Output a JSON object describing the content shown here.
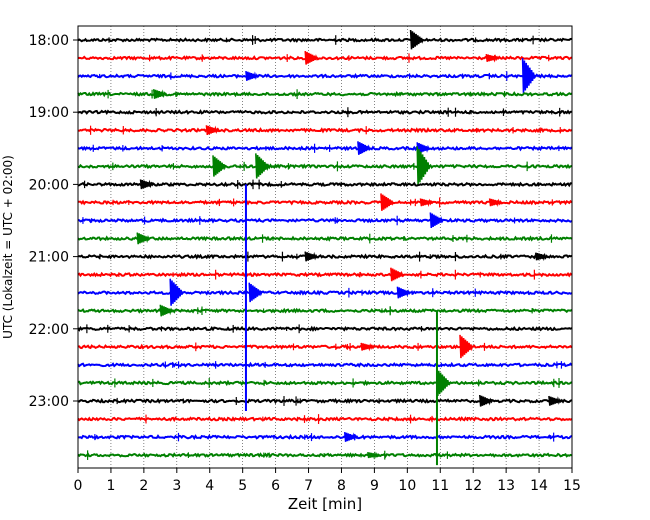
{
  "chart_data": {
    "type": "line",
    "title": "",
    "xlabel": "Zeit  [min]",
    "ylabel": "UTC (Lokalzeit = UTC + 02:00)",
    "xlim": [
      0,
      15
    ],
    "x_ticks": [
      0,
      1,
      2,
      3,
      4,
      5,
      6,
      7,
      8,
      9,
      10,
      11,
      12,
      13,
      14,
      15
    ],
    "x_tick_labels": [
      "0",
      "1",
      "2",
      "3",
      "4",
      "5",
      "6",
      "7",
      "8",
      "9",
      "10",
      "11",
      "12",
      "13",
      "14",
      "15"
    ],
    "y_tick_labels": [
      "18:00",
      "19:00",
      "20:00",
      "21:00",
      "22:00",
      "23:00"
    ],
    "vertical_grid": "dotted",
    "color_cycle": [
      "#000000",
      "#ff0000",
      "#0000ff",
      "#008000"
    ],
    "traces": [
      {
        "start": "18:00",
        "events": [
          {
            "t": 10.1,
            "amp": 10
          }
        ]
      },
      {
        "start": "18:15",
        "events": [
          {
            "t": 6.9,
            "amp": 7
          },
          {
            "t": 12.4,
            "amp": 4
          }
        ]
      },
      {
        "start": "18:30",
        "events": [
          {
            "t": 13.5,
            "amp": 18
          },
          {
            "t": 5.1,
            "amp": 5
          }
        ]
      },
      {
        "start": "18:45",
        "events": [
          {
            "t": 2.3,
            "amp": 5
          }
        ]
      },
      {
        "start": "19:00",
        "events": []
      },
      {
        "start": "19:15",
        "events": [
          {
            "t": 3.9,
            "amp": 5
          }
        ]
      },
      {
        "start": "19:30",
        "events": [
          {
            "t": 8.5,
            "amp": 7
          },
          {
            "t": 10.3,
            "amp": 6
          }
        ]
      },
      {
        "start": "19:45",
        "events": [
          {
            "t": 4.1,
            "amp": 11
          },
          {
            "t": 5.4,
            "amp": 13
          },
          {
            "t": 10.3,
            "amp": 20
          }
        ]
      },
      {
        "start": "20:00",
        "events": [
          {
            "t": 1.9,
            "amp": 5
          }
        ]
      },
      {
        "start": "20:15",
        "events": [
          {
            "t": 9.2,
            "amp": 9
          },
          {
            "t": 10.4,
            "amp": 4
          },
          {
            "t": 12.5,
            "amp": 4
          }
        ]
      },
      {
        "start": "20:30",
        "events": [
          {
            "t": 10.7,
            "amp": 8
          }
        ]
      },
      {
        "start": "20:45",
        "events": [
          {
            "t": 1.8,
            "amp": 6
          }
        ]
      },
      {
        "start": "21:00",
        "events": [
          {
            "t": 6.9,
            "amp": 5
          },
          {
            "t": 13.9,
            "amp": 4
          }
        ]
      },
      {
        "start": "21:15",
        "events": [
          {
            "t": 9.5,
            "amp": 7
          }
        ]
      },
      {
        "start": "21:30",
        "events": [
          {
            "t": 2.8,
            "amp": 14
          },
          {
            "t": 5.2,
            "amp": 10
          },
          {
            "t": 9.7,
            "amp": 6
          }
        ]
      },
      {
        "start": "21:45",
        "events": [
          {
            "t": 2.5,
            "amp": 6
          }
        ]
      },
      {
        "start": "22:00",
        "events": []
      },
      {
        "start": "22:15",
        "events": [
          {
            "t": 11.6,
            "amp": 12
          },
          {
            "t": 8.6,
            "amp": 4
          }
        ]
      },
      {
        "start": "22:30",
        "events": []
      },
      {
        "start": "22:45",
        "events": [
          {
            "t": 10.9,
            "amp": 14
          }
        ]
      },
      {
        "start": "23:00",
        "events": [
          {
            "t": 12.2,
            "amp": 6
          },
          {
            "t": 14.3,
            "amp": 5
          }
        ]
      },
      {
        "start": "23:15",
        "events": []
      },
      {
        "start": "23:30",
        "events": [
          {
            "t": 8.1,
            "amp": 5
          }
        ]
      },
      {
        "start": "23:45",
        "events": [
          {
            "t": 8.8,
            "amp": 3
          }
        ]
      }
    ],
    "large_events": [
      {
        "t": 5.1,
        "from_trace": 8,
        "to_trace": 20
      },
      {
        "t": 10.9,
        "from_trace": 15,
        "to_trace": 23
      }
    ]
  }
}
